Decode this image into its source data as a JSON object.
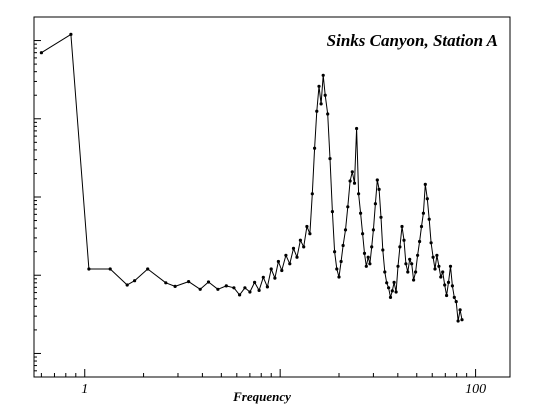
{
  "chart_data": {
    "type": "line",
    "title": "Sinks Canyon, Station A",
    "xlabel": "Frequency",
    "ylabel": "",
    "x_scale": "log",
    "y_scale": "log",
    "xlim": [
      0.55,
      150
    ],
    "ylim": [
      0.5,
      20000
    ],
    "x_tick_labels": [
      {
        "value": 1,
        "label": "1"
      },
      {
        "value": 100,
        "label": "100"
      }
    ],
    "grid": false,
    "legend": "none",
    "series": [
      {
        "values": [
          [
            0.6,
            7000
          ],
          [
            0.85,
            12000
          ],
          [
            1.05,
            12
          ],
          [
            1.35,
            12
          ],
          [
            1.65,
            7.5
          ],
          [
            1.8,
            8.5
          ],
          [
            2.1,
            12
          ],
          [
            2.6,
            8
          ],
          [
            2.9,
            7.2
          ],
          [
            3.4,
            8.3
          ],
          [
            3.9,
            6.6
          ],
          [
            4.3,
            8.2
          ],
          [
            4.8,
            6.6
          ],
          [
            5.3,
            7.3
          ],
          [
            5.8,
            6.9
          ],
          [
            6.2,
            5.6
          ],
          [
            6.6,
            6.9
          ],
          [
            7.0,
            6.1
          ],
          [
            7.4,
            8.1
          ],
          [
            7.8,
            6.4
          ],
          [
            8.2,
            9.4
          ],
          [
            8.6,
            7.1
          ],
          [
            9.0,
            12
          ],
          [
            9.4,
            9.2
          ],
          [
            9.8,
            15
          ],
          [
            10.2,
            11.5
          ],
          [
            10.7,
            18
          ],
          [
            11.2,
            14
          ],
          [
            11.7,
            22
          ],
          [
            12.2,
            17
          ],
          [
            12.7,
            28
          ],
          [
            13.2,
            23
          ],
          [
            13.7,
            42
          ],
          [
            14.2,
            34
          ],
          [
            14.6,
            110
          ],
          [
            15.0,
            420
          ],
          [
            15.4,
            1250
          ],
          [
            15.8,
            2600
          ],
          [
            16.2,
            1550
          ],
          [
            16.6,
            3600
          ],
          [
            17.0,
            2000
          ],
          [
            17.5,
            1150
          ],
          [
            18.0,
            310
          ],
          [
            18.5,
            65
          ],
          [
            19.0,
            20
          ],
          [
            19.5,
            12
          ],
          [
            20.0,
            9.5
          ],
          [
            20.5,
            15
          ],
          [
            21.0,
            24
          ],
          [
            21.6,
            38
          ],
          [
            22.2,
            75
          ],
          [
            22.8,
            160
          ],
          [
            23.4,
            210
          ],
          [
            24.0,
            150
          ],
          [
            24.6,
            750
          ],
          [
            25.2,
            110
          ],
          [
            25.8,
            62
          ],
          [
            26.4,
            34
          ],
          [
            27.0,
            19
          ],
          [
            27.6,
            13
          ],
          [
            28.2,
            17
          ],
          [
            28.8,
            14
          ],
          [
            29.4,
            23
          ],
          [
            30.0,
            38
          ],
          [
            30.7,
            82
          ],
          [
            31.4,
            165
          ],
          [
            32.1,
            125
          ],
          [
            32.8,
            55
          ],
          [
            33.5,
            21
          ],
          [
            34.3,
            11
          ],
          [
            35.1,
            8
          ],
          [
            35.9,
            6.9
          ],
          [
            36.7,
            5.2
          ],
          [
            37.5,
            6.3
          ],
          [
            38.3,
            8.1
          ],
          [
            39.2,
            6.1
          ],
          [
            40.1,
            13
          ],
          [
            41.0,
            23
          ],
          [
            42.0,
            42
          ],
          [
            43.0,
            28
          ],
          [
            44.0,
            14
          ],
          [
            45.0,
            11
          ],
          [
            46.0,
            16
          ],
          [
            47.1,
            14
          ],
          [
            48.2,
            8.7
          ],
          [
            49.3,
            11
          ],
          [
            50.5,
            18
          ],
          [
            51.7,
            27
          ],
          [
            52.9,
            42
          ],
          [
            54.1,
            62
          ],
          [
            55.3,
            145
          ],
          [
            56.6,
            95
          ],
          [
            57.9,
            52
          ],
          [
            59.2,
            26
          ],
          [
            60.6,
            17
          ],
          [
            62.0,
            12
          ],
          [
            63.4,
            18
          ],
          [
            64.9,
            13
          ],
          [
            66.4,
            9.5
          ],
          [
            67.9,
            11
          ],
          [
            69.5,
            7.5
          ],
          [
            71.1,
            5.5
          ],
          [
            72.7,
            8.1
          ],
          [
            74.4,
            13
          ],
          [
            76.1,
            7.3
          ],
          [
            77.8,
            5.2
          ],
          [
            79.6,
            4.6
          ],
          [
            81.4,
            2.6
          ],
          [
            83.3,
            3.6
          ],
          [
            85.2,
            2.7
          ]
        ]
      }
    ]
  }
}
